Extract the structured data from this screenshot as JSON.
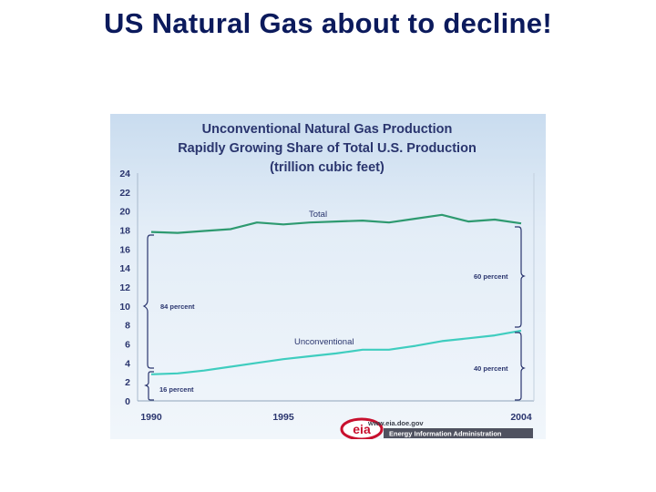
{
  "slide": {
    "title": "US Natural Gas about to decline!"
  },
  "chart_data": {
    "type": "line",
    "title_lines": [
      "Unconventional Natural Gas Production",
      "Rapidly Growing Share of Total U.S. Production",
      "(trillion cubic feet)"
    ],
    "x": [
      1990,
      1991,
      1992,
      1993,
      1994,
      1995,
      1996,
      1997,
      1998,
      1999,
      2000,
      2001,
      2002,
      2003,
      2004
    ],
    "x_tick_labels": [
      {
        "value": 1990,
        "label": "1990"
      },
      {
        "value": 1995,
        "label": "1995"
      },
      {
        "value": 2004,
        "label": "2004"
      }
    ],
    "ylim": [
      0,
      24
    ],
    "y_ticks": [
      0,
      2,
      4,
      6,
      8,
      10,
      12,
      14,
      16,
      18,
      20,
      22,
      24
    ],
    "series": [
      {
        "name": "Total",
        "color": "#2e9a70",
        "values": [
          17.8,
          17.7,
          17.9,
          18.1,
          18.8,
          18.6,
          18.8,
          18.9,
          19.0,
          18.8,
          19.2,
          19.6,
          18.9,
          19.1,
          18.7
        ]
      },
      {
        "name": "Unconventional",
        "color": "#3fcdbf",
        "values": [
          2.8,
          2.9,
          3.2,
          3.6,
          4.0,
          4.4,
          4.7,
          5.0,
          5.4,
          5.4,
          5.8,
          6.3,
          6.6,
          6.9,
          7.4
        ]
      }
    ],
    "annotations": {
      "p84": "84 percent",
      "p16": "16 percent",
      "p60": "60 percent",
      "p40": "40 percent"
    },
    "source": {
      "logo_letters": "eia",
      "url": "www.eia.doe.gov",
      "agency": "Energy Information Administration"
    }
  }
}
